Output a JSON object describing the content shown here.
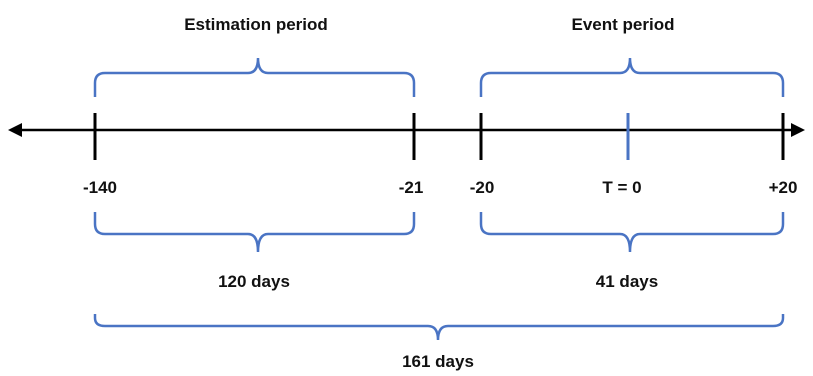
{
  "periods": {
    "estimation": {
      "title": "Estimation period",
      "duration": "120 days"
    },
    "event": {
      "title": "Event period",
      "duration": "41 days"
    }
  },
  "total_duration": "161 days",
  "ticks": [
    "-140",
    "-21",
    "-20",
    "T = 0",
    "+20"
  ],
  "colors": {
    "brace": "#4a74c4",
    "axis": "#000000",
    "event_tick": "#4a74c4"
  }
}
